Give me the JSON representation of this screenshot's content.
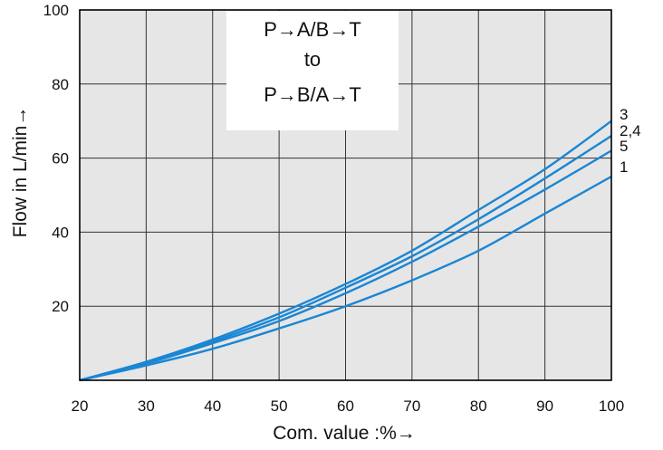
{
  "chart_data": {
    "type": "line",
    "xlabel": "Com. value :%→",
    "ylabel": "Flow in L/min→",
    "xlim": [
      20,
      100
    ],
    "ylim": [
      0,
      100
    ],
    "x_ticks": [
      "20",
      "30",
      "40",
      "50",
      "60",
      "70",
      "80",
      "90",
      "100"
    ],
    "y_ticks": [
      "20",
      "40",
      "60",
      "80",
      "100"
    ],
    "grid": true,
    "annotation": [
      "P→A/B→T",
      "to",
      "P→B/A→T"
    ],
    "line_color": "#1a86d4",
    "plot_background": "#e6e6e6",
    "series": [
      {
        "name": "3",
        "x": [
          20,
          30,
          40,
          50,
          60,
          70,
          80,
          90,
          100
        ],
        "y": [
          0,
          5,
          11,
          18,
          26,
          35,
          46,
          57,
          70
        ]
      },
      {
        "name": "2,4",
        "x": [
          20,
          30,
          40,
          50,
          60,
          70,
          80,
          90,
          100
        ],
        "y": [
          0,
          4.8,
          10.5,
          17,
          25,
          33.5,
          43.5,
          54.5,
          66
        ]
      },
      {
        "name": "5",
        "x": [
          20,
          30,
          40,
          50,
          60,
          70,
          80,
          90,
          100
        ],
        "y": [
          0,
          4.5,
          10,
          16,
          23.5,
          32,
          41.5,
          51.5,
          62
        ]
      },
      {
        "name": "1",
        "x": [
          20,
          30,
          40,
          50,
          60,
          70,
          80,
          90,
          100
        ],
        "y": [
          0,
          4,
          8.5,
          14,
          20,
          27,
          35,
          45,
          55
        ]
      }
    ]
  }
}
